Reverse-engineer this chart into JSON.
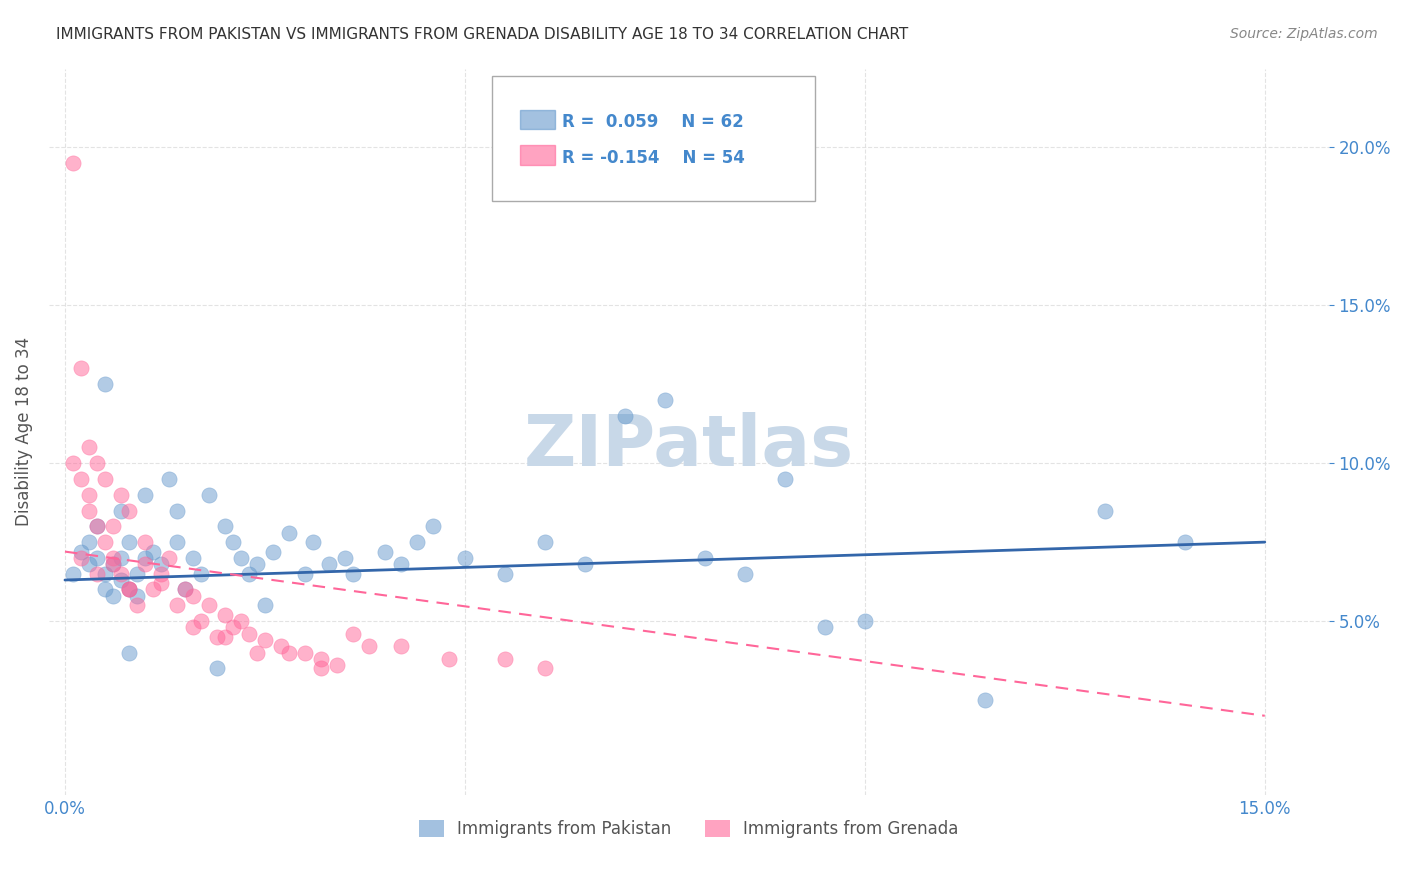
{
  "title": "IMMIGRANTS FROM PAKISTAN VS IMMIGRANTS FROM GRENADA DISABILITY AGE 18 TO 34 CORRELATION CHART",
  "source_text": "Source: ZipAtlas.com",
  "ylabel": "Disability Age 18 to 34",
  "xlabel_ticks": [
    0.0,
    0.03,
    0.06,
    0.09,
    0.12,
    0.15
  ],
  "xlabel_tick_labels": [
    "0.0%",
    "",
    "",
    "",
    "",
    "15.0%"
  ],
  "right_yticks": [
    0.05,
    0.1,
    0.15,
    0.2
  ],
  "right_ytick_labels": [
    "5.0%",
    "10.0%",
    "15.0%",
    "20.0%"
  ],
  "xlim": [
    -0.002,
    0.158
  ],
  "ylim": [
    -0.005,
    0.225
  ],
  "pakistan_color": "#6699CC",
  "grenada_color": "#FF6699",
  "pakistan_R": 0.059,
  "pakistan_N": 62,
  "grenada_R": -0.154,
  "grenada_N": 54,
  "watermark": "ZIPatlas",
  "watermark_color": "#C8D8E8",
  "pakistan_scatter_x": [
    0.001,
    0.002,
    0.003,
    0.003,
    0.004,
    0.004,
    0.005,
    0.005,
    0.006,
    0.006,
    0.007,
    0.007,
    0.007,
    0.008,
    0.008,
    0.009,
    0.009,
    0.01,
    0.01,
    0.011,
    0.012,
    0.013,
    0.014,
    0.014,
    0.015,
    0.016,
    0.017,
    0.018,
    0.02,
    0.021,
    0.022,
    0.023,
    0.024,
    0.026,
    0.028,
    0.03,
    0.031,
    0.033,
    0.035,
    0.036,
    0.04,
    0.042,
    0.044,
    0.046,
    0.05,
    0.055,
    0.06,
    0.065,
    0.07,
    0.075,
    0.08,
    0.085,
    0.09,
    0.095,
    0.1,
    0.115,
    0.13,
    0.14,
    0.005,
    0.008,
    0.019,
    0.025
  ],
  "pakistan_scatter_y": [
    0.065,
    0.072,
    0.068,
    0.075,
    0.07,
    0.08,
    0.06,
    0.065,
    0.058,
    0.068,
    0.063,
    0.07,
    0.085,
    0.06,
    0.075,
    0.058,
    0.065,
    0.07,
    0.09,
    0.072,
    0.068,
    0.095,
    0.075,
    0.085,
    0.06,
    0.07,
    0.065,
    0.09,
    0.08,
    0.075,
    0.07,
    0.065,
    0.068,
    0.072,
    0.078,
    0.065,
    0.075,
    0.068,
    0.07,
    0.065,
    0.072,
    0.068,
    0.075,
    0.08,
    0.07,
    0.065,
    0.075,
    0.068,
    0.115,
    0.12,
    0.07,
    0.065,
    0.095,
    0.048,
    0.05,
    0.025,
    0.085,
    0.075,
    0.125,
    0.04,
    0.035,
    0.055
  ],
  "grenada_scatter_x": [
    0.001,
    0.001,
    0.002,
    0.002,
    0.003,
    0.003,
    0.003,
    0.004,
    0.004,
    0.005,
    0.005,
    0.006,
    0.006,
    0.007,
    0.007,
    0.008,
    0.008,
    0.009,
    0.01,
    0.01,
    0.011,
    0.012,
    0.013,
    0.014,
    0.015,
    0.016,
    0.017,
    0.018,
    0.019,
    0.02,
    0.021,
    0.022,
    0.023,
    0.025,
    0.027,
    0.03,
    0.032,
    0.034,
    0.036,
    0.038,
    0.042,
    0.048,
    0.055,
    0.06,
    0.002,
    0.004,
    0.006,
    0.008,
    0.012,
    0.016,
    0.02,
    0.024,
    0.028,
    0.032
  ],
  "grenada_scatter_y": [
    0.195,
    0.1,
    0.095,
    0.13,
    0.09,
    0.085,
    0.105,
    0.08,
    0.1,
    0.075,
    0.095,
    0.07,
    0.08,
    0.065,
    0.09,
    0.06,
    0.085,
    0.055,
    0.068,
    0.075,
    0.06,
    0.065,
    0.07,
    0.055,
    0.06,
    0.058,
    0.05,
    0.055,
    0.045,
    0.052,
    0.048,
    0.05,
    0.046,
    0.044,
    0.042,
    0.04,
    0.038,
    0.036,
    0.046,
    0.042,
    0.042,
    0.038,
    0.038,
    0.035,
    0.07,
    0.065,
    0.068,
    0.06,
    0.062,
    0.048,
    0.045,
    0.04,
    0.04,
    0.035
  ],
  "pakistan_trend_x": [
    0.0,
    0.15
  ],
  "pakistan_trend_y_start": 0.063,
  "pakistan_trend_y_end": 0.075,
  "grenada_trend_x": [
    0.0,
    0.15
  ],
  "grenada_trend_y_start": 0.072,
  "grenada_trend_y_end": 0.02,
  "background_color": "#FFFFFF",
  "grid_color": "#DDDDDD",
  "title_color": "#333333",
  "axis_color": "#4488CC",
  "legend_border_color": "#AAAAAA"
}
